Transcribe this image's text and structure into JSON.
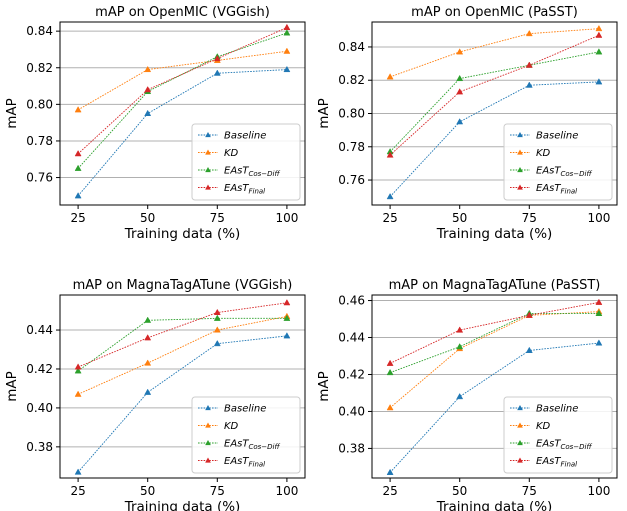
{
  "chart_data": [
    {
      "type": "line",
      "title": "mAP on OpenMIC (VGGish)",
      "xlabel": "Training data (%)",
      "ylabel": "mAP",
      "x": [
        25,
        50,
        75,
        100
      ],
      "xticks": [
        "25",
        "50",
        "75",
        "100"
      ],
      "yticks": [
        "0.76",
        "0.78",
        "0.80",
        "0.82",
        "0.84"
      ],
      "ylim": [
        0.745,
        0.845
      ],
      "grid": "horizontal",
      "legend_position": "bottom-right",
      "series": [
        {
          "name": "Baseline",
          "values": [
            0.75,
            0.795,
            0.817,
            0.819
          ]
        },
        {
          "name": "KD",
          "values": [
            0.797,
            0.819,
            0.824,
            0.829
          ]
        },
        {
          "name": "EAsT_Cos-Diff",
          "values": [
            0.765,
            0.807,
            0.826,
            0.839
          ]
        },
        {
          "name": "EAsT_Final",
          "values": [
            0.773,
            0.808,
            0.825,
            0.842
          ]
        }
      ]
    },
    {
      "type": "line",
      "title": "mAP on OpenMIC (PaSST)",
      "xlabel": "Training data (%)",
      "ylabel": "mAP",
      "x": [
        25,
        50,
        75,
        100
      ],
      "xticks": [
        "25",
        "50",
        "75",
        "100"
      ],
      "yticks": [
        "0.76",
        "0.78",
        "0.80",
        "0.82",
        "0.84"
      ],
      "ylim": [
        0.745,
        0.855
      ],
      "grid": "horizontal",
      "legend_position": "bottom-right",
      "series": [
        {
          "name": "Baseline",
          "values": [
            0.75,
            0.795,
            0.817,
            0.819
          ]
        },
        {
          "name": "KD",
          "values": [
            0.822,
            0.837,
            0.848,
            0.851
          ]
        },
        {
          "name": "EAsT_Cos-Diff",
          "values": [
            0.777,
            0.821,
            0.829,
            0.837
          ]
        },
        {
          "name": "EAsT_Final",
          "values": [
            0.775,
            0.813,
            0.829,
            0.847
          ]
        }
      ]
    },
    {
      "type": "line",
      "title": "mAP on MagnaTagATune (VGGish)",
      "xlabel": "Training data (%)",
      "ylabel": "mAP",
      "x": [
        25,
        50,
        75,
        100
      ],
      "xticks": [
        "25",
        "50",
        "75",
        "100"
      ],
      "yticks": [
        "0.38",
        "0.40",
        "0.42",
        "0.44"
      ],
      "ylim": [
        0.364,
        0.458
      ],
      "grid": "horizontal",
      "legend_position": "bottom-right",
      "series": [
        {
          "name": "Baseline",
          "values": [
            0.367,
            0.408,
            0.433,
            0.437
          ]
        },
        {
          "name": "KD",
          "values": [
            0.407,
            0.423,
            0.44,
            0.447
          ]
        },
        {
          "name": "EAsT_Cos-Diff",
          "values": [
            0.419,
            0.445,
            0.446,
            0.446
          ]
        },
        {
          "name": "EAsT_Final",
          "values": [
            0.421,
            0.436,
            0.449,
            0.454
          ]
        }
      ]
    },
    {
      "type": "line",
      "title": "mAP on MagnaTagATune (PaSST)",
      "xlabel": "Training data (%)",
      "ylabel": "mAP",
      "x": [
        25,
        50,
        75,
        100
      ],
      "xticks": [
        "25",
        "50",
        "75",
        "100"
      ],
      "yticks": [
        "0.38",
        "0.40",
        "0.42",
        "0.44",
        "0.46"
      ],
      "ylim": [
        0.364,
        0.463
      ],
      "grid": "horizontal",
      "legend_position": "bottom-right",
      "series": [
        {
          "name": "Baseline",
          "values": [
            0.367,
            0.408,
            0.433,
            0.437
          ]
        },
        {
          "name": "KD",
          "values": [
            0.402,
            0.434,
            0.452,
            0.454
          ]
        },
        {
          "name": "EAsT_Cos-Diff",
          "values": [
            0.421,
            0.435,
            0.453,
            0.453
          ]
        },
        {
          "name": "EAsT_Final",
          "values": [
            0.426,
            0.444,
            0.452,
            0.459
          ]
        }
      ]
    }
  ],
  "legend": {
    "entries": [
      {
        "label": "Baseline",
        "sub": ""
      },
      {
        "label": "KD",
        "sub": ""
      },
      {
        "label": "EAsT",
        "sub": "Cos−Diff"
      },
      {
        "label": "EAsT",
        "sub": "Final"
      }
    ]
  },
  "colors": {
    "Baseline": "#1f77b4",
    "KD": "#ff7f0e",
    "EAsT_Cos-Diff": "#2ca02c",
    "EAsT_Final": "#d62728",
    "grid": "#b0b0b0",
    "axis": "#000000"
  }
}
